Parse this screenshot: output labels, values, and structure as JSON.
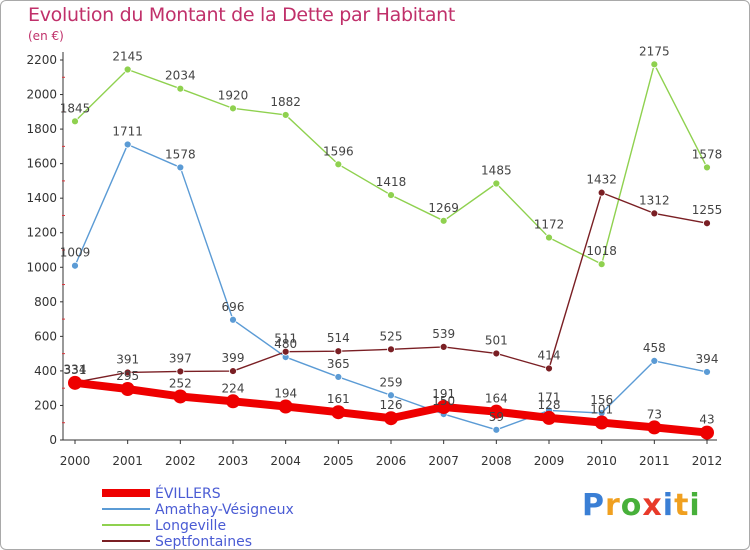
{
  "chart_data": {
    "type": "line",
    "title": "Evolution du Montant de la Dette par Habitant",
    "subtitle": "(en €)",
    "x": [
      "2000",
      "2001",
      "2002",
      "2003",
      "2004",
      "2005",
      "2006",
      "2007",
      "2008",
      "2009",
      "2010",
      "2011",
      "2012"
    ],
    "ylim": [
      0,
      2200
    ],
    "yticks": [
      0,
      200,
      400,
      600,
      800,
      1000,
      1200,
      1400,
      1600,
      1800,
      2000,
      2200
    ],
    "grid": false,
    "legend_position": "bottom-left",
    "series": [
      {
        "name": "ÉVILLERS",
        "color": "#ee0000",
        "values": [
          331,
          295,
          252,
          224,
          194,
          161,
          126,
          191,
          164,
          128,
          101,
          73,
          43
        ]
      },
      {
        "name": "Amathay-Vésigneux",
        "color": "#5b9bd5",
        "values": [
          1009,
          1711,
          1578,
          696,
          480,
          365,
          259,
          150,
          59,
          171,
          156,
          458,
          394
        ]
      },
      {
        "name": "Longeville",
        "color": "#8fd14f",
        "values": [
          1845,
          2145,
          2034,
          1920,
          1882,
          1596,
          1418,
          1269,
          1485,
          1172,
          1018,
          2175,
          1578
        ]
      },
      {
        "name": "Septfontaines",
        "color": "#7a1f24",
        "values": [
          334,
          391,
          397,
          399,
          511,
          514,
          525,
          539,
          501,
          414,
          1432,
          1312,
          1255
        ]
      }
    ]
  },
  "logo": {
    "letters": [
      "P",
      "r",
      "o",
      "x",
      "i",
      "t",
      "i"
    ],
    "colors": [
      "#3a7fd5",
      "#f0a020",
      "#47b03a",
      "#e83a2a",
      "#3a7fd5",
      "#f0a020",
      "#47b03a"
    ]
  }
}
